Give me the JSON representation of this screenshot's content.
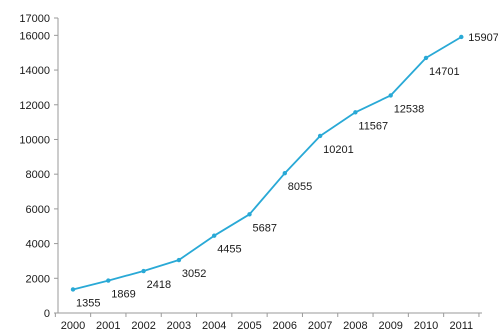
{
  "chart_data": {
    "type": "line",
    "categories": [
      "2000",
      "2001",
      "2002",
      "2003",
      "2004",
      "2005",
      "2006",
      "2007",
      "2008",
      "2009",
      "2010",
      "2011"
    ],
    "series": [
      {
        "values": [
          1355,
          1869,
          2418,
          3052,
          4455,
          5687,
          8055,
          10201,
          11567,
          12538,
          14701,
          15907
        ],
        "color": "#29a9d6"
      }
    ],
    "data_labels": [
      "1355",
      "1869",
      "2418",
      "3052",
      "4455",
      "5687",
      "8055",
      "10201",
      "11567",
      "12538",
      "14701",
      "15907"
    ],
    "y_ticks": [
      0,
      2000,
      4000,
      6000,
      8000,
      10000,
      12000,
      14000,
      16000,
      17000
    ],
    "y_tick_labels": [
      "0",
      "2000",
      "4000",
      "6000",
      "8000",
      "10000",
      "12000",
      "14000",
      "16000",
      "17000"
    ],
    "ylim": [
      0,
      17000
    ],
    "grid": false,
    "axis_color": "#9a9a9a",
    "title": "",
    "xlabel": "",
    "ylabel": ""
  }
}
